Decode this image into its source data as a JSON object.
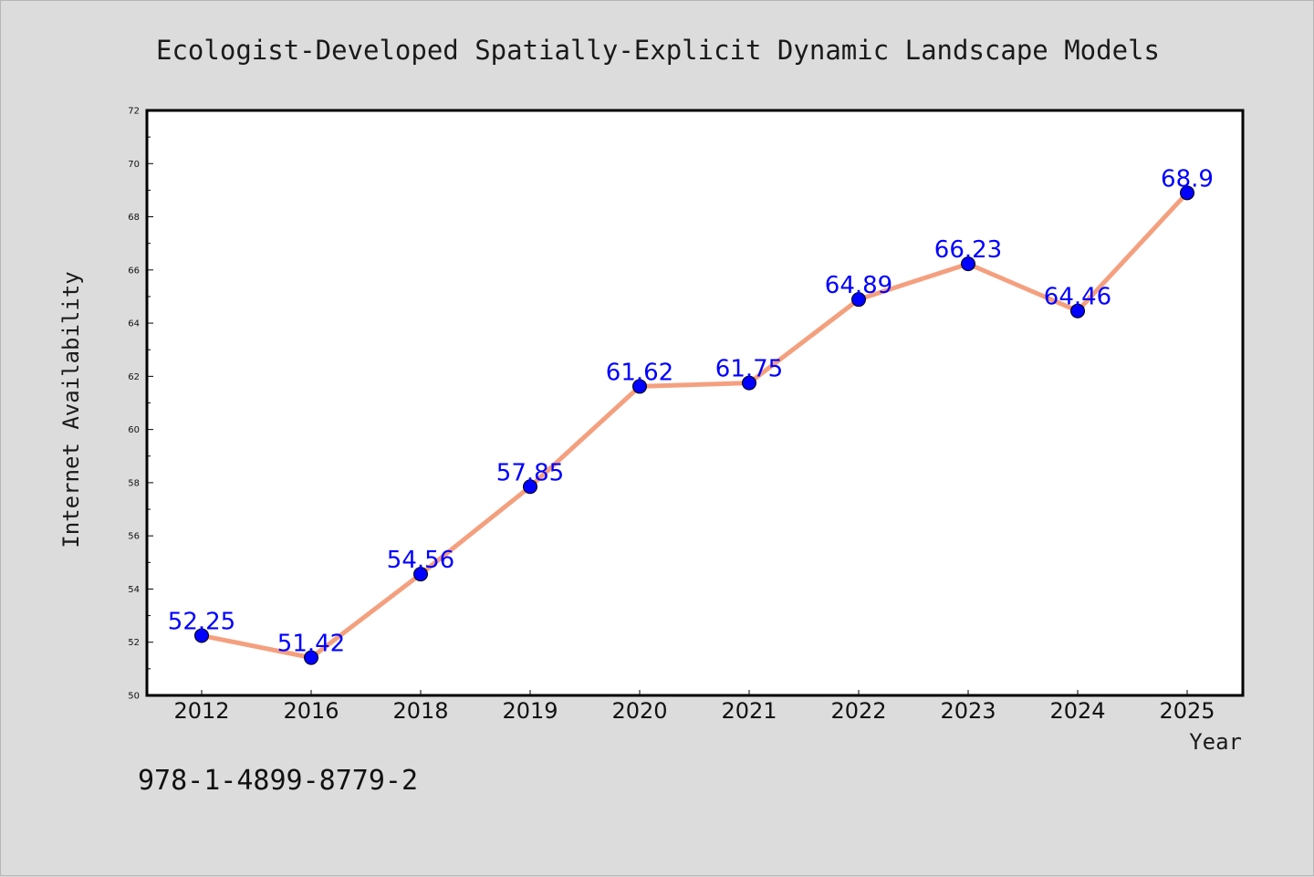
{
  "isbn": "978-1-4899-8779-2",
  "colors": {
    "background": "#dcdcdc",
    "plot_background": "#ffffff",
    "line": "#f4a07f",
    "marker": "#0000ff",
    "data_label": "#0000ff",
    "axis": "#000000"
  },
  "chart_data": {
    "type": "line",
    "title": "Ecologist-Developed Spatially-Explicit Dynamic Landscape Models",
    "xlabel": "Year",
    "ylabel": "Internet Availability",
    "categories": [
      "2012",
      "2016",
      "2018",
      "2019",
      "2020",
      "2021",
      "2022",
      "2023",
      "2024",
      "2025"
    ],
    "series": [
      {
        "values": [
          52.25,
          51.42,
          54.56,
          57.85,
          61.62,
          61.75,
          64.89,
          66.23,
          64.46,
          68.9
        ],
        "labels": [
          "52.25",
          "51.42",
          "54.56",
          "57.85",
          "61.62",
          "61.75",
          "64.89",
          "66.23",
          "64.46",
          "68.9"
        ]
      }
    ],
    "ylim": [
      50,
      72
    ],
    "yticks": [
      "50",
      "52",
      "54",
      "56",
      "58",
      "60",
      "62",
      "64",
      "66",
      "68",
      "70",
      "72"
    ],
    "grid": false,
    "legend": "none"
  }
}
